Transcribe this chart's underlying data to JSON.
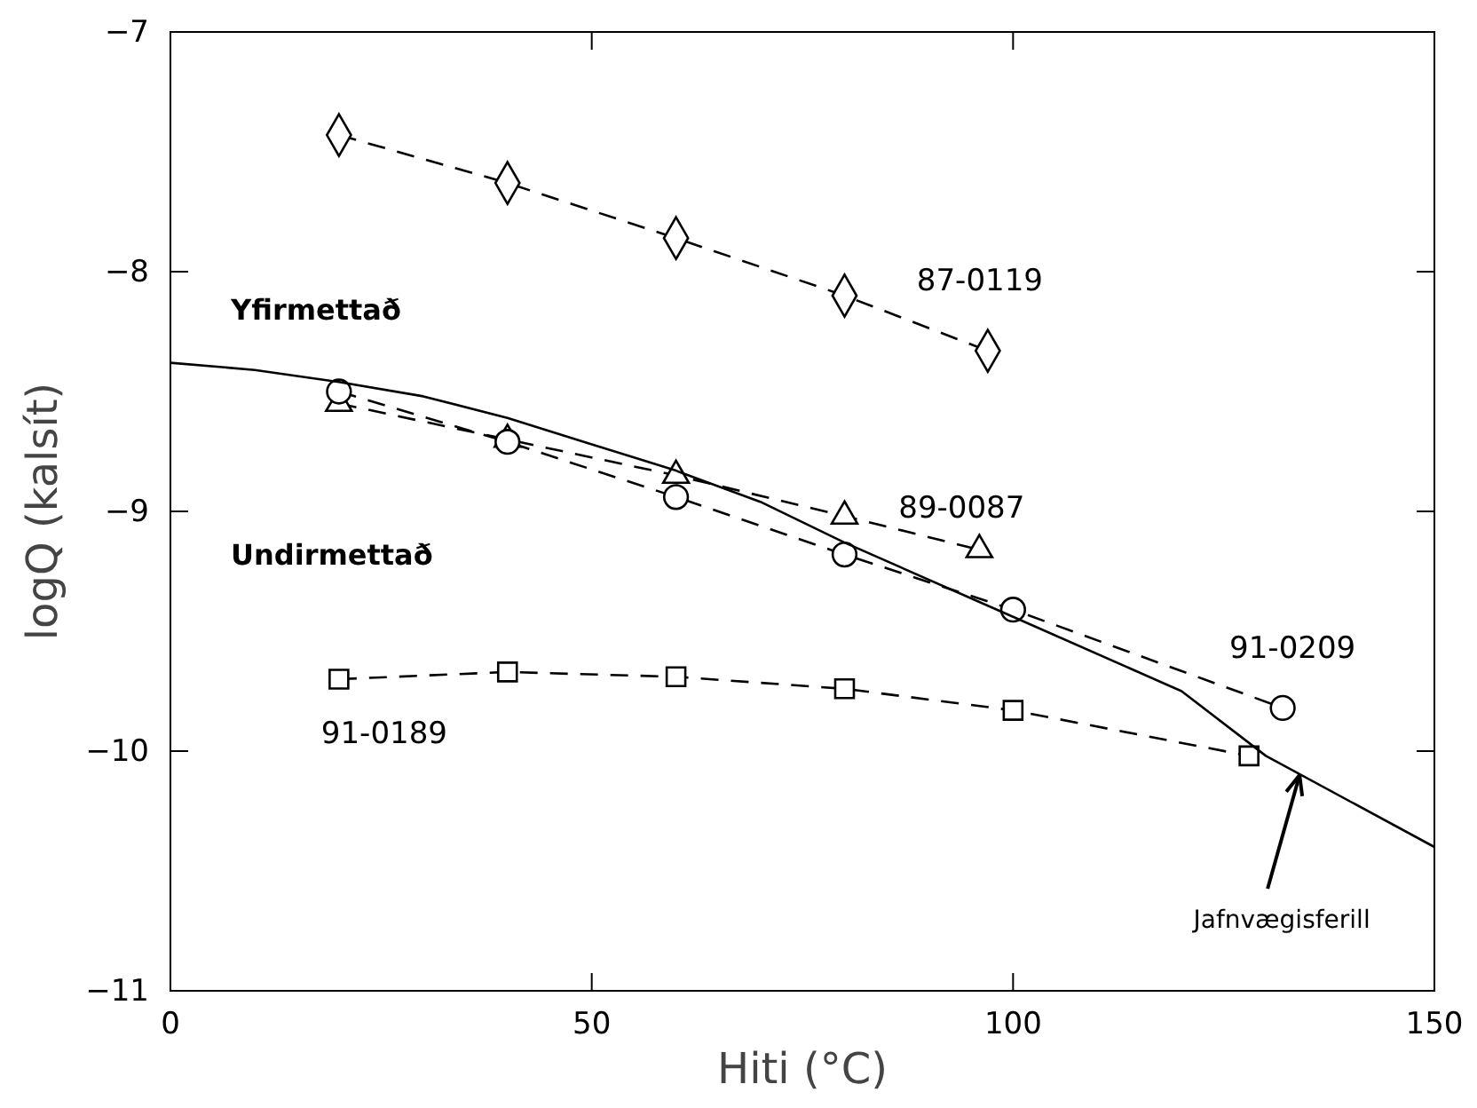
{
  "chart_data": {
    "type": "line",
    "xlabel": "Hiti (°C)",
    "ylabel": "logQ (kalsít)",
    "xlim": [
      0,
      150
    ],
    "ylim": [
      -11,
      -7
    ],
    "xticks": [
      0,
      50,
      100,
      150
    ],
    "yticks": [
      -11,
      -10,
      -9,
      -8,
      -7
    ],
    "grid": false,
    "annotations": [
      "Yfirmettað",
      "Undirmettað",
      {
        "text": "Jafnvægisferill",
        "x": 134,
        "y": -10.1
      }
    ],
    "series": [
      {
        "name": "87-0119",
        "color": "#000000",
        "marker": "diamond",
        "line_style": "dashed",
        "x": [
          20,
          40,
          60,
          80,
          97
        ],
        "values": [
          -7.43,
          -7.63,
          -7.86,
          -8.1,
          -8.33
        ]
      },
      {
        "name": "89-0087",
        "color": "#000000",
        "marker": "triangle",
        "line_style": "dashed",
        "x": [
          20,
          40,
          60,
          80,
          96
        ],
        "values": [
          -8.55,
          -8.7,
          -8.85,
          -9.02,
          -9.16
        ]
      },
      {
        "name": "91-0209",
        "color": "#000000",
        "marker": "circle",
        "line_style": "dashed",
        "x": [
          20,
          40,
          60,
          80,
          100,
          132
        ],
        "values": [
          -8.5,
          -8.71,
          -8.94,
          -9.18,
          -9.41,
          -9.82
        ]
      },
      {
        "name": "91-0189",
        "color": "#000000",
        "marker": "square",
        "line_style": "dashed",
        "x": [
          20,
          40,
          60,
          80,
          100,
          128
        ],
        "values": [
          -9.7,
          -9.67,
          -9.69,
          -9.74,
          -9.83,
          -10.02
        ]
      },
      {
        "color": "#000000",
        "marker": "none",
        "line_style": "solid",
        "x": [
          0,
          10,
          20,
          30,
          40,
          50,
          60,
          70,
          80,
          100,
          120,
          130,
          150
        ],
        "values": [
          -8.38,
          -8.41,
          -8.46,
          -8.52,
          -8.61,
          -8.72,
          -8.83,
          -8.96,
          -9.13,
          -9.44,
          -9.75,
          -10.02,
          -10.4
        ]
      }
    ]
  }
}
